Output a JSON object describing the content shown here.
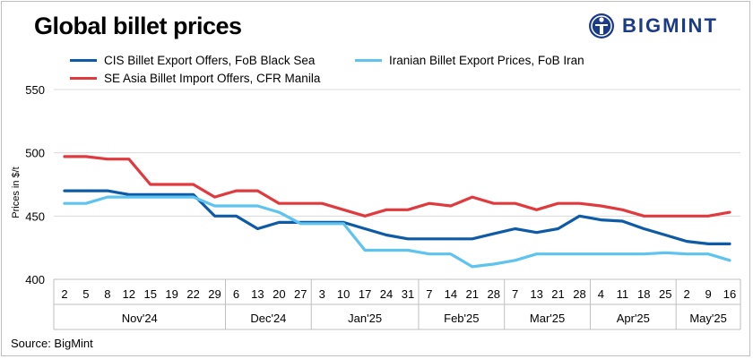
{
  "title": "Global billet prices",
  "brand": {
    "name": "BIGMINT"
  },
  "source": "Source: BigMint",
  "chart_data": {
    "type": "line",
    "title": "Global billet prices",
    "ylabel": "Prices in $/t",
    "xlabel": "",
    "ylim": [
      400,
      550
    ],
    "yticks": [
      400,
      450,
      500,
      550
    ],
    "grid": "horizontal",
    "legend_position": "top",
    "x": [
      "2",
      "5",
      "8",
      "12",
      "15",
      "19",
      "22",
      "29",
      "6",
      "13",
      "20",
      "27",
      "3",
      "10",
      "17",
      "24",
      "31",
      "7",
      "14",
      "21",
      "28",
      "7",
      "13",
      "21",
      "28",
      "4",
      "11",
      "18",
      "25",
      "2",
      "9",
      "16"
    ],
    "months": [
      {
        "label": "Nov'24",
        "count": 8
      },
      {
        "label": "Dec'24",
        "count": 4
      },
      {
        "label": "Jan'25",
        "count": 5
      },
      {
        "label": "Feb'25",
        "count": 4
      },
      {
        "label": "Mar'25",
        "count": 4
      },
      {
        "label": "Apr'25",
        "count": 4
      },
      {
        "label": "May'25",
        "count": 3
      }
    ],
    "series": [
      {
        "name": "CIS Billet Export Offers, FoB Black Sea",
        "color": "#0d5aa7",
        "values": [
          470,
          470,
          470,
          467,
          467,
          467,
          467,
          450,
          450,
          440,
          445,
          445,
          445,
          445,
          440,
          435,
          432,
          432,
          432,
          432,
          436,
          440,
          437,
          440,
          450,
          447,
          446,
          440,
          435,
          430,
          428,
          428
        ]
      },
      {
        "name": "Iranian Billet Export Prices, FoB Iran",
        "color": "#5ec3ee",
        "values": [
          460,
          460,
          465,
          465,
          465,
          465,
          465,
          458,
          458,
          458,
          453,
          444,
          444,
          444,
          423,
          423,
          423,
          420,
          420,
          410,
          412,
          415,
          420,
          420,
          420,
          420,
          420,
          420,
          421,
          420,
          420,
          415
        ]
      },
      {
        "name": "SE Asia Billet Import Offers, CFR Manila",
        "color": "#e03a3e",
        "values": [
          497,
          497,
          495,
          495,
          475,
          475,
          475,
          465,
          470,
          470,
          460,
          460,
          460,
          455,
          450,
          455,
          455,
          460,
          458,
          465,
          460,
          460,
          455,
          460,
          460,
          458,
          455,
          450,
          450,
          450,
          450,
          453
        ]
      }
    ]
  }
}
